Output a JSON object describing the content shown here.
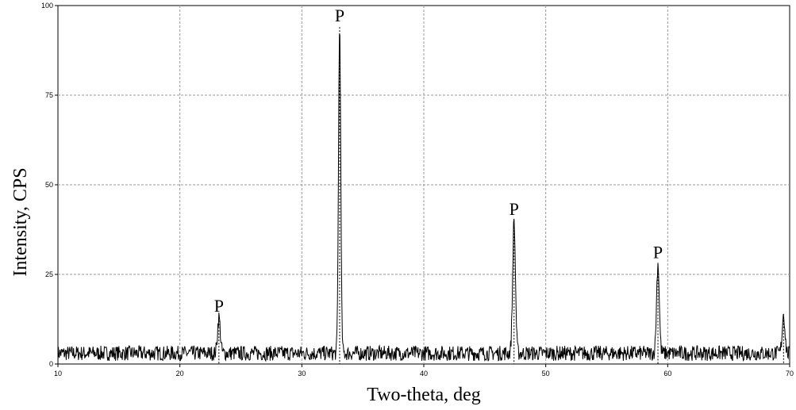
{
  "chart_data": {
    "type": "line",
    "xlabel": "Two-theta, deg",
    "ylabel": "Intensity, CPS",
    "xlim": [
      10,
      70
    ],
    "ylim": [
      0,
      100
    ],
    "x_ticks": [
      10,
      20,
      30,
      40,
      50,
      60,
      70
    ],
    "y_ticks": [
      0,
      25,
      50,
      75,
      100
    ],
    "grid": true,
    "grid_style": "dashed",
    "line_color": "#000000",
    "background_noise_level": 3,
    "peaks": [
      {
        "label": "P",
        "x": 23.2,
        "y": 13
      },
      {
        "label": "P",
        "x": 33.1,
        "y": 94
      },
      {
        "label": "P",
        "x": 47.4,
        "y": 40
      },
      {
        "label": "P",
        "x": 59.2,
        "y": 28
      }
    ],
    "edge_peak": {
      "x": 69.5,
      "y": 14
    }
  }
}
